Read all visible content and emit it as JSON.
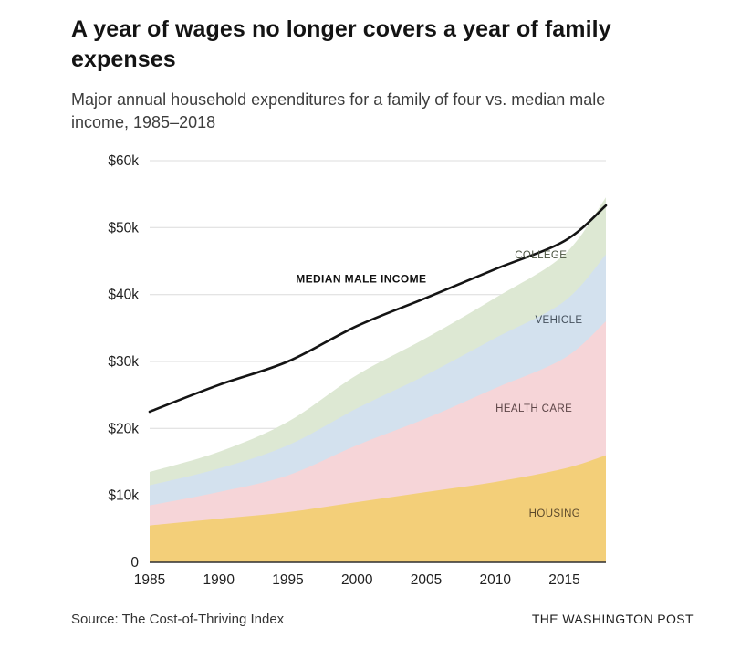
{
  "header": {
    "title": "A year of wages no longer covers a year of family expenses",
    "subtitle": "Major annual household expenditures for a family of four vs. median male income, 1985–2018"
  },
  "chart_data": {
    "type": "area",
    "stacked": true,
    "units": "thousands of dollars per year",
    "title": "A year of wages no longer covers a year of family expenses",
    "xlabel": "",
    "ylabel": "",
    "xlim": [
      1985,
      2018
    ],
    "ylim": [
      0,
      60
    ],
    "grid": true,
    "grid_color": "#dcdcdc",
    "axis_color": "#2f2f2f",
    "tick_text_color": "#1f1f1f",
    "x": [
      1985,
      1990,
      1995,
      2000,
      2005,
      2010,
      2015,
      2018
    ],
    "xticks": [
      {
        "value": 1985,
        "label": "1985"
      },
      {
        "value": 1990,
        "label": "1990"
      },
      {
        "value": 1995,
        "label": "1995"
      },
      {
        "value": 2000,
        "label": "2000"
      },
      {
        "value": 2005,
        "label": "2005"
      },
      {
        "value": 2010,
        "label": "2010"
      },
      {
        "value": 2015,
        "label": "2015"
      }
    ],
    "yticks": [
      {
        "value": 0,
        "label": "0"
      },
      {
        "value": 10,
        "label": "$10k"
      },
      {
        "value": 20,
        "label": "$20k"
      },
      {
        "value": 30,
        "label": "$30k"
      },
      {
        "value": 40,
        "label": "$40k"
      },
      {
        "value": 50,
        "label": "$50k"
      },
      {
        "value": 60,
        "label": "$60k"
      }
    ],
    "series": [
      {
        "name": "HOUSING",
        "color": "#f3cf79",
        "values": [
          5.5,
          6.5,
          7.5,
          9.0,
          10.5,
          12.0,
          14.0,
          16.0
        ]
      },
      {
        "name": "HEALTH CARE",
        "color": "#f6d5d8",
        "values": [
          3.0,
          4.0,
          5.5,
          8.5,
          11.0,
          14.0,
          16.5,
          20.0
        ]
      },
      {
        "name": "VEHICLE",
        "color": "#d3e1ee",
        "values": [
          3.0,
          3.5,
          4.5,
          5.5,
          6.5,
          7.5,
          8.5,
          10.0
        ]
      },
      {
        "name": "COLLEGE",
        "color": "#dde8d3",
        "values": [
          2.0,
          2.5,
          3.5,
          5.0,
          5.5,
          6.0,
          7.0,
          8.5
        ]
      }
    ],
    "line": {
      "name": "MEDIAN MALE INCOME",
      "color": "#141414",
      "values": [
        22.5,
        26.5,
        30.0,
        35.3,
        39.5,
        43.8,
        48.0,
        53.3
      ]
    },
    "annotations": [
      {
        "text": "MEDIAN MALE INCOME",
        "x": 2000.3,
        "y": 41.8,
        "weight": "bold",
        "size": 12,
        "color": "#111111",
        "data_name": "median-male-income-label"
      },
      {
        "text": "COLLEGE",
        "x": 2013.3,
        "y": 45.4,
        "weight": "normal",
        "size": 11.5,
        "color": "#4a5340",
        "data_name": "college-label"
      },
      {
        "text": "VEHICLE",
        "x": 2014.6,
        "y": 35.7,
        "weight": "normal",
        "size": 11.5,
        "color": "#46525e",
        "data_name": "vehicle-label"
      },
      {
        "text": "HEALTH CARE",
        "x": 2012.8,
        "y": 22.5,
        "weight": "normal",
        "size": 11.5,
        "color": "#5d4547",
        "data_name": "health-care-label"
      },
      {
        "text": "HOUSING",
        "x": 2014.3,
        "y": 6.8,
        "weight": "normal",
        "size": 11.5,
        "color": "#5c492b",
        "data_name": "housing-label"
      }
    ]
  },
  "footer": {
    "source": "Source: The Cost-of-Thriving Index",
    "attribution": "THE WASHINGTON POST"
  }
}
